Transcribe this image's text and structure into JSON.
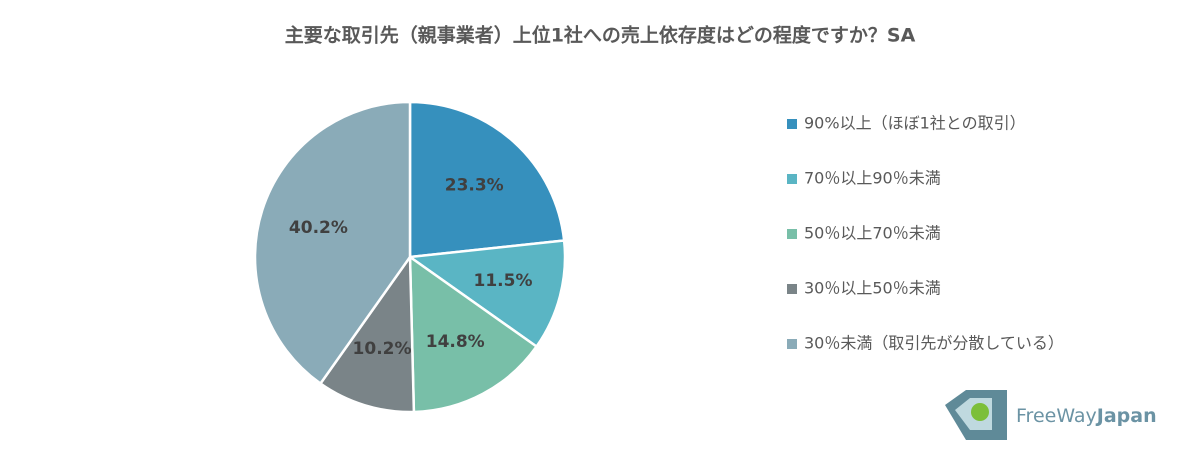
{
  "chart_data": {
    "type": "pie",
    "title": "主要な取引先（親事業者）上位1社への売上依存度はどの程度ですか？SA",
    "categories": [
      "90%以上（ほぼ1社との取引）",
      "70％以上90％未満",
      "50％以上70％未満",
      "30％以上50％未満",
      "30％未満（取引先が分散している）"
    ],
    "values": [
      23.3,
      11.5,
      14.8,
      10.2,
      40.2
    ],
    "value_labels": [
      "23.3%",
      "11.5%",
      "14.8%",
      "10.2%",
      "40.2%"
    ],
    "colors": [
      "#3690bd",
      "#5ab5c4",
      "#78bfa8",
      "#7a8488",
      "#8aabb8"
    ],
    "legend": "right"
  },
  "logo": {
    "text": "FreeWay",
    "text_bold": "Japan"
  }
}
